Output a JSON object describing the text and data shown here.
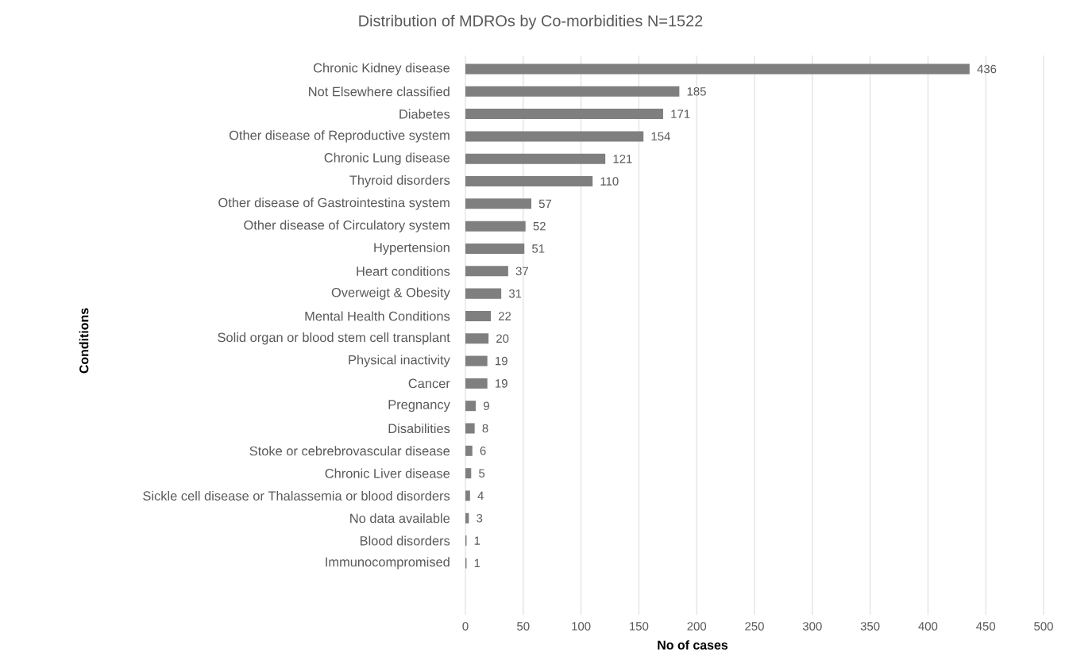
{
  "chart_data": {
    "type": "bar",
    "orientation": "horizontal",
    "title": "Distribution of MDROs by Co-morbidities N=1522",
    "xlabel": "No of cases",
    "ylabel": "Conditions",
    "categories": [
      "Chronic Kidney disease",
      "Not Elsewhere classified",
      "Diabetes",
      "Other disease of Reproductive system",
      "Chronic Lung disease",
      "Thyroid disorders",
      "Other disease of Gastrointestina system",
      "Other disease of Circulatory system",
      "Hypertension",
      "Heart conditions",
      "Overweigt & Obesity",
      "Mental Health Conditions",
      "Solid organ or blood stem cell transplant",
      "Physical inactivity",
      "Cancer",
      "Pregnancy",
      "Disabilities",
      "Stoke or cebrebrovascular disease",
      "Chronic Liver disease",
      "Sickle cell disease or Thalassemia or blood disorders",
      "No data available",
      "Blood disorders",
      "Immunocompromised"
    ],
    "values": [
      436,
      185,
      171,
      154,
      121,
      110,
      57,
      52,
      51,
      37,
      31,
      22,
      20,
      19,
      19,
      9,
      8,
      6,
      5,
      4,
      3,
      1,
      1
    ],
    "color": "#7f7f7f",
    "xlim": [
      0,
      500
    ],
    "xticks": [
      0,
      50,
      100,
      150,
      200,
      250,
      300,
      350,
      400,
      450,
      500
    ],
    "grid": "x",
    "data_labels": true
  }
}
